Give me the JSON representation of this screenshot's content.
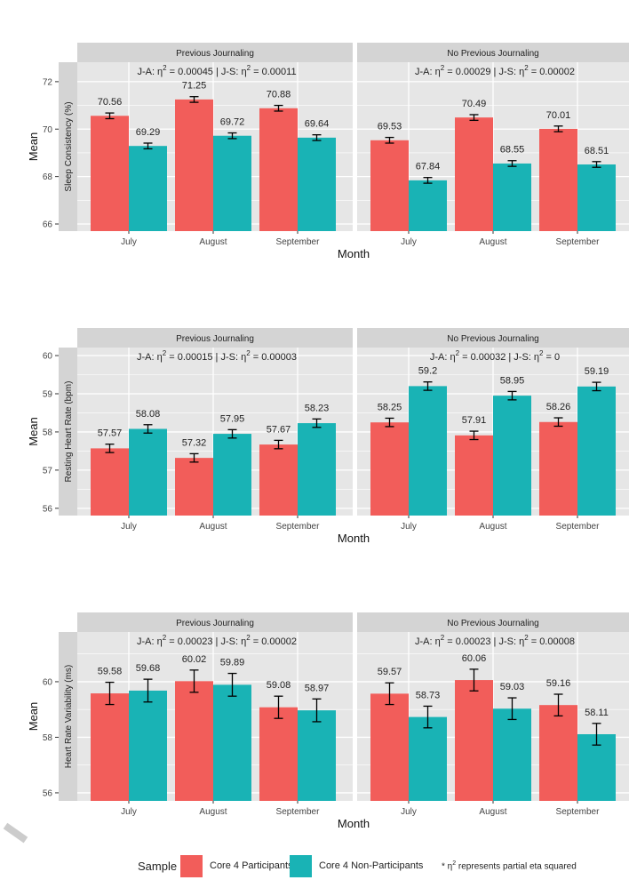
{
  "chart_data": [
    {
      "type": "bar",
      "ylabel_outer": "Mean",
      "ylabel_inner": "Sleep Consistency (%)",
      "xlabel": "Month",
      "ylim": [
        65.7,
        72.82
      ],
      "yticks": [
        66,
        68,
        70,
        72
      ],
      "minor_step": 1,
      "categories": [
        "July",
        "August",
        "September"
      ],
      "facets": [
        {
          "title": "Previous Journaling",
          "annotation": {
            "ja": "J-A: η",
            "ja_val": " =  0.00045 | J-S: η",
            "js_val": " = 0.00011"
          },
          "series": [
            {
              "name": "Core 4 Participants",
              "values": [
                70.56,
                71.25,
                70.88
              ],
              "err": [
                0.12,
                0.12,
                0.12
              ]
            },
            {
              "name": "Core 4 Non-Participants",
              "values": [
                69.29,
                69.72,
                69.64
              ],
              "err": [
                0.12,
                0.12,
                0.12
              ]
            }
          ]
        },
        {
          "title": "No Previous Journaling",
          "annotation": {
            "ja": "J-A: η",
            "ja_val": " = 0.00029 | J-S: η",
            "js_val": " = 0.00002"
          },
          "series": [
            {
              "name": "Core 4 Participants",
              "values": [
                69.53,
                70.49,
                70.01
              ],
              "err": [
                0.12,
                0.12,
                0.12
              ]
            },
            {
              "name": "Core 4 Non-Participants",
              "values": [
                67.84,
                68.55,
                68.51
              ],
              "err": [
                0.12,
                0.12,
                0.12
              ]
            }
          ]
        }
      ]
    },
    {
      "type": "bar",
      "ylabel_outer": "Mean",
      "ylabel_inner": "Resting Heart Rate (bpm)",
      "xlabel": "Month",
      "ylim": [
        55.81,
        60.21
      ],
      "yticks": [
        56,
        57,
        58,
        59,
        60
      ],
      "minor_step": 0.5,
      "categories": [
        "July",
        "August",
        "September"
      ],
      "facets": [
        {
          "title": "Previous Journaling",
          "annotation": {
            "ja": "J-A: η",
            "ja_val": " =  0.00015 | J-S: η",
            "js_val": " = 0.00003"
          },
          "series": [
            {
              "name": "Core 4 Participants",
              "values": [
                57.57,
                57.32,
                57.67
              ],
              "err": [
                0.11,
                0.11,
                0.11
              ]
            },
            {
              "name": "Core 4 Non-Participants",
              "values": [
                58.08,
                57.95,
                58.23
              ],
              "err": [
                0.11,
                0.11,
                0.11
              ]
            }
          ]
        },
        {
          "title": "No Previous Journaling",
          "annotation": {
            "ja": "J-A: η",
            "ja_val": " = 0.00032 | J-S: η",
            "js_val": " = 0"
          },
          "series": [
            {
              "name": "Core 4 Participants",
              "values": [
                58.25,
                57.91,
                58.26
              ],
              "err": [
                0.11,
                0.11,
                0.11
              ]
            },
            {
              "name": "Core 4 Non-Participants",
              "values": [
                59.2,
                58.95,
                59.19
              ],
              "err": [
                0.11,
                0.11,
                0.11
              ]
            }
          ]
        }
      ]
    },
    {
      "type": "bar",
      "ylabel_outer": "Mean",
      "ylabel_inner": "Heart Rate Variability (ms)",
      "xlabel": "Month",
      "ylim": [
        55.71,
        61.79
      ],
      "yticks": [
        56,
        58,
        60
      ],
      "minor_step": 1,
      "categories": [
        "July",
        "August",
        "September"
      ],
      "facets": [
        {
          "title": "Previous Journaling",
          "annotation": {
            "ja": "J-A: η",
            "ja_val": " =  0.00023 | J-S: η",
            "js_val": " = 0.00002"
          },
          "series": [
            {
              "name": "Core 4 Participants",
              "values": [
                59.58,
                60.02,
                59.08
              ],
              "err": [
                0.4,
                0.4,
                0.4
              ]
            },
            {
              "name": "Core 4 Non-Participants",
              "values": [
                59.68,
                59.89,
                58.97
              ],
              "err": [
                0.41,
                0.41,
                0.41
              ]
            }
          ]
        },
        {
          "title": "No Previous Journaling",
          "annotation": {
            "ja": "J-A: η",
            "ja_val": " =  0.00023 | J-S: η",
            "js_val": " = 0.00008"
          },
          "series": [
            {
              "name": "Core 4 Participants",
              "values": [
                59.57,
                60.06,
                59.16
              ],
              "err": [
                0.39,
                0.39,
                0.39
              ]
            },
            {
              "name": "Core 4 Non-Participants",
              "values": [
                58.73,
                59.03,
                58.11
              ],
              "err": [
                0.39,
                0.39,
                0.39
              ]
            }
          ]
        }
      ]
    }
  ],
  "legend": {
    "title": "Sample",
    "items": [
      {
        "label": "Core 4 Participants",
        "color": "#F25D5A"
      },
      {
        "label": "Core 4 Non-Participants",
        "color": "#19B3B5"
      }
    ],
    "note_prefix": "* η",
    "note_sup": "2",
    "note_suffix": " represents partial eta squared"
  },
  "colors": {
    "panel_bg": "#E6E6E6",
    "strip_bg": "#D4D4D4",
    "grid": "#FFFFFF"
  }
}
